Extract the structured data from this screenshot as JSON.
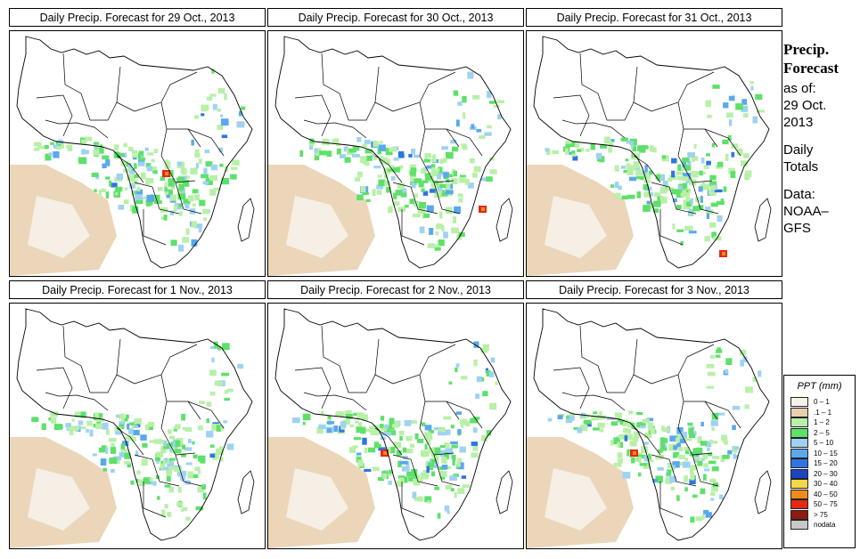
{
  "panels": [
    {
      "title": "Daily Precip. Forecast for  29 Oct., 2013"
    },
    {
      "title": "Daily Precip. Forecast for  30 Oct., 2013"
    },
    {
      "title": "Daily Precip. Forecast for  31 Oct., 2013"
    },
    {
      "title": "Daily Precip. Forecast for  1 Nov., 2013"
    },
    {
      "title": "Daily Precip. Forecast for  2 Nov., 2013"
    },
    {
      "title": "Daily Precip. Forecast for  3 Nov., 2013"
    }
  ],
  "side": {
    "line1": "Precip.",
    "line2": "Forecast",
    "line3": "as of:",
    "line4": "29 Oct.",
    "line5": "2013",
    "line6": "Daily",
    "line7": "Totals",
    "line8": "Data:",
    "line9": "NOAA–",
    "line10": "GFS"
  },
  "legend": {
    "title": "PPT (mm)",
    "items": [
      {
        "label": "0 – 1",
        "color": "#f6f2ea"
      },
      {
        "label": ".1 – 1",
        "color": "#e8cfae"
      },
      {
        "label": "1 – 2",
        "color": "#b8f0a8"
      },
      {
        "label": "2 – 5",
        "color": "#5ee06a"
      },
      {
        "label": "5 – 10",
        "color": "#9fd2f2"
      },
      {
        "label": "10 – 15",
        "color": "#5aa8ec"
      },
      {
        "label": "15 – 20",
        "color": "#2f74e4"
      },
      {
        "label": "20 – 30",
        "color": "#1c44c2"
      },
      {
        "label": "30 – 40",
        "color": "#f6d64a"
      },
      {
        "label": "40 – 50",
        "color": "#f08a1c"
      },
      {
        "label": "50 – 75",
        "color": "#e02a14"
      },
      {
        "label": "> 75",
        "color": "#8e1a12"
      },
      {
        "label": "nodata",
        "color": "#c8c8c8"
      }
    ]
  },
  "chart_data": {
    "type": "heatmap",
    "title": "Daily Precip. Forecast",
    "variable": "PPT (mm)",
    "issued": "29 Oct. 2013",
    "source": "NOAA–GFS",
    "dates": [
      "29 Oct., 2013",
      "30 Oct., 2013",
      "31 Oct., 2013",
      "1 Nov., 2013",
      "2 Nov., 2013",
      "3 Nov., 2013"
    ],
    "bins": [
      "0 – 1",
      ".1 – 1",
      "1 – 2",
      "2 – 5",
      "5 – 10",
      "10 – 15",
      "15 – 20",
      "20 – 30",
      "30 – 40",
      "40 – 50",
      "50 – 75",
      "> 75",
      "nodata"
    ]
  }
}
